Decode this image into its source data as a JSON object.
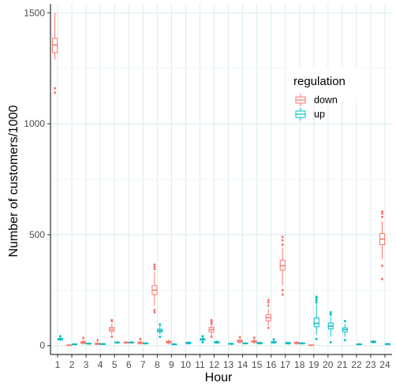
{
  "chart_data": {
    "type": "boxplot",
    "xlabel": "Hour",
    "ylabel": "Number of customers/1000",
    "categories": [
      "1",
      "2",
      "3",
      "4",
      "5",
      "6",
      "7",
      "8",
      "9",
      "10",
      "11",
      "12",
      "13",
      "14",
      "15",
      "16",
      "17",
      "18",
      "19",
      "20",
      "21",
      "22",
      "23",
      "24"
    ],
    "ylim": [
      -40,
      1540
    ],
    "yticks": [
      0,
      500,
      1000,
      1500
    ],
    "grid": true,
    "legend": {
      "title": "regulation",
      "placement": "top-right"
    },
    "series": [
      {
        "name": "down",
        "color": "#f8766d",
        "offset": -0.19,
        "boxes": [
          {
            "hour": "1",
            "min": 1290,
            "q1": 1320,
            "median": 1355,
            "q3": 1385,
            "max": 1500,
            "outliers": [
              1160,
              1140
            ]
          },
          {
            "hour": "2",
            "min": 0,
            "q1": 1,
            "median": 2,
            "q3": 3,
            "max": 5,
            "outliers": []
          },
          {
            "hour": "3",
            "min": 5,
            "q1": 10,
            "median": 14,
            "q3": 18,
            "max": 28,
            "outliers": [
              35
            ]
          },
          {
            "hour": "4",
            "min": 2,
            "q1": 5,
            "median": 8,
            "q3": 11,
            "max": 18,
            "outliers": [
              25
            ]
          },
          {
            "hour": "5",
            "min": 50,
            "q1": 65,
            "median": 73,
            "q3": 82,
            "max": 100,
            "outliers": [
              40,
              110,
              115
            ]
          },
          {
            "hour": "6",
            "min": 8,
            "q1": 12,
            "median": 14,
            "q3": 16,
            "max": 20,
            "outliers": []
          },
          {
            "hour": "7",
            "min": 5,
            "q1": 9,
            "median": 12,
            "q3": 16,
            "max": 25,
            "outliers": [
              30
            ]
          },
          {
            "hour": "8",
            "min": 180,
            "q1": 230,
            "median": 250,
            "q3": 270,
            "max": 330,
            "outliers": [
              150,
              160,
              345,
              355,
              365
            ]
          },
          {
            "hour": "9",
            "min": 5,
            "q1": 12,
            "median": 16,
            "q3": 20,
            "max": 28,
            "outliers": []
          },
          {
            "hour": "12",
            "min": 45,
            "q1": 62,
            "median": 72,
            "q3": 82,
            "max": 95,
            "outliers": [
              40,
              100,
              108,
              115
            ]
          },
          {
            "hour": "14",
            "min": 8,
            "q1": 15,
            "median": 20,
            "q3": 25,
            "max": 32,
            "outliers": [
              38
            ]
          },
          {
            "hour": "15",
            "min": 8,
            "q1": 14,
            "median": 18,
            "q3": 22,
            "max": 30,
            "outliers": [
              35
            ]
          },
          {
            "hour": "16",
            "min": 90,
            "q1": 112,
            "median": 126,
            "q3": 140,
            "max": 165,
            "outliers": [
              80,
              180,
              195,
              205
            ]
          },
          {
            "hour": "17",
            "min": 270,
            "q1": 340,
            "median": 360,
            "q3": 385,
            "max": 440,
            "outliers": [
              230,
              250,
              455,
              475,
              490
            ]
          },
          {
            "hour": "18",
            "min": 5,
            "q1": 9,
            "median": 12,
            "q3": 15,
            "max": 20,
            "outliers": []
          },
          {
            "hour": "19",
            "min": 0,
            "q1": 1,
            "median": 2,
            "q3": 3,
            "max": 5,
            "outliers": []
          },
          {
            "hour": "24",
            "min": 390,
            "q1": 455,
            "median": 480,
            "q3": 505,
            "max": 560,
            "outliers": [
              300,
              360,
              580,
              595,
              605
            ]
          }
        ]
      },
      {
        "name": "up",
        "color": "#00bfc4",
        "offset": 0.19,
        "boxes": [
          {
            "hour": "1",
            "min": 20,
            "q1": 26,
            "median": 29,
            "q3": 32,
            "max": 38,
            "outliers": [
              42
            ]
          },
          {
            "hour": "2",
            "min": 2,
            "q1": 4,
            "median": 6,
            "q3": 8,
            "max": 11,
            "outliers": []
          },
          {
            "hour": "3",
            "min": 4,
            "q1": 7,
            "median": 9,
            "q3": 11,
            "max": 15,
            "outliers": []
          },
          {
            "hour": "4",
            "min": 3,
            "q1": 5,
            "median": 7,
            "q3": 9,
            "max": 12,
            "outliers": []
          },
          {
            "hour": "5",
            "min": 8,
            "q1": 12,
            "median": 14,
            "q3": 16,
            "max": 20,
            "outliers": []
          },
          {
            "hour": "6",
            "min": 9,
            "q1": 12,
            "median": 14,
            "q3": 16,
            "max": 19,
            "outliers": []
          },
          {
            "hour": "7",
            "min": 5,
            "q1": 8,
            "median": 10,
            "q3": 12,
            "max": 16,
            "outliers": []
          },
          {
            "hour": "8",
            "min": 50,
            "q1": 62,
            "median": 68,
            "q3": 74,
            "max": 88,
            "outliers": [
              40,
              95
            ]
          },
          {
            "hour": "9",
            "min": 2,
            "q1": 4,
            "median": 6,
            "q3": 8,
            "max": 11,
            "outliers": []
          },
          {
            "hour": "10",
            "min": 5,
            "q1": 9,
            "median": 12,
            "q3": 15,
            "max": 20,
            "outliers": []
          },
          {
            "hour": "11",
            "min": 18,
            "q1": 25,
            "median": 28,
            "q3": 31,
            "max": 38,
            "outliers": [
              15,
              42
            ]
          },
          {
            "hour": "12",
            "min": 8,
            "q1": 12,
            "median": 15,
            "q3": 18,
            "max": 24,
            "outliers": []
          },
          {
            "hour": "13",
            "min": 3,
            "q1": 6,
            "median": 8,
            "q3": 10,
            "max": 14,
            "outliers": []
          },
          {
            "hour": "14",
            "min": 5,
            "q1": 8,
            "median": 10,
            "q3": 12,
            "max": 16,
            "outliers": []
          },
          {
            "hour": "15",
            "min": 5,
            "q1": 8,
            "median": 11,
            "q3": 14,
            "max": 19,
            "outliers": []
          },
          {
            "hour": "16",
            "min": 8,
            "q1": 12,
            "median": 15,
            "q3": 18,
            "max": 24,
            "outliers": [
              28
            ]
          },
          {
            "hour": "17",
            "min": 5,
            "q1": 8,
            "median": 11,
            "q3": 14,
            "max": 18,
            "outliers": []
          },
          {
            "hour": "18",
            "min": 5,
            "q1": 8,
            "median": 10,
            "q3": 12,
            "max": 17,
            "outliers": []
          },
          {
            "hour": "19",
            "min": 50,
            "q1": 85,
            "median": 100,
            "q3": 125,
            "max": 185,
            "outliers": [
              30,
              195,
              205,
              215,
              220
            ]
          },
          {
            "hour": "20",
            "min": 40,
            "q1": 75,
            "median": 88,
            "q3": 102,
            "max": 130,
            "outliers": [
              15,
              140,
              150
            ]
          },
          {
            "hour": "21",
            "min": 40,
            "q1": 62,
            "median": 72,
            "q3": 80,
            "max": 98,
            "outliers": [
              25,
              110
            ]
          },
          {
            "hour": "22",
            "min": 2,
            "q1": 4,
            "median": 6,
            "q3": 8,
            "max": 11,
            "outliers": []
          },
          {
            "hour": "23",
            "min": 10,
            "q1": 14,
            "median": 17,
            "q3": 20,
            "max": 25,
            "outliers": []
          },
          {
            "hour": "24",
            "min": 2,
            "q1": 5,
            "median": 7,
            "q3": 9,
            "max": 12,
            "outliers": []
          }
        ]
      }
    ]
  }
}
